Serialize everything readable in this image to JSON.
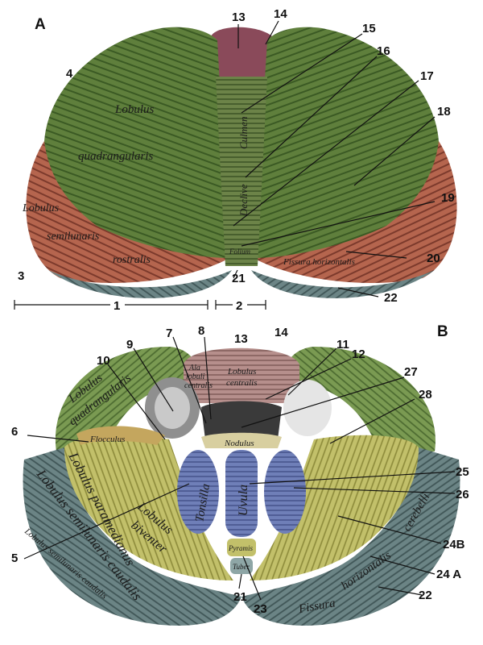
{
  "panels": {
    "a": "A",
    "b": "B"
  },
  "top_numbers": {
    "n13": "13",
    "n14": "14",
    "n15": "15",
    "n16": "16",
    "n17": "17",
    "n18": "18",
    "n19": "19",
    "n20": "20",
    "n21": "21",
    "n22": "22",
    "n1": "1",
    "n2": "2",
    "n3": "3",
    "n4": "4"
  },
  "top_labels": {
    "lobulus": "Lobulus",
    "quadrangularis": "quadrangularis",
    "lobulus_l": "Lobulus",
    "semilunaris": "semilunaris",
    "rostralis": "rostralis",
    "culmen": "Culmen",
    "declive": "Declive",
    "folium": "Folium",
    "fissura_horiz": "Fissura horizontalis"
  },
  "bottom_numbers": {
    "n5": "5",
    "n6": "6",
    "n7": "7",
    "n8": "8",
    "n9": "9",
    "n10": "10",
    "n11": "11",
    "n12": "12",
    "n13": "13",
    "n14": "14",
    "n21": "21",
    "n22": "22",
    "n23": "23",
    "n24a": "24 A",
    "n24b": "24B",
    "n25": "25",
    "n26": "26",
    "n27": "27",
    "n28": "28"
  },
  "bottom_labels": {
    "ala": "Ala",
    "lobuli": "lobuli",
    "centralis_ala": "centralis",
    "lobulus_c": "Lobulus",
    "centralis": "centralis",
    "lobulus_q": "Lobulus",
    "quadrangularis": "quadrangularis",
    "flocculus": "Flocculus",
    "nodulus": "Nodulus",
    "tonsilla": "Tonsilla",
    "uvula": "Uvula",
    "lobulus_b": "Lobulus",
    "biventer": "biventer",
    "lobulus_p": "Lobulus paramedianus",
    "semilunaris_caudalis": "Lobulus semilunaris caudalis",
    "lobulus_sc": "Lobulus semilunaris caudalis",
    "pyramis": "Pyramis",
    "tuber": "Tuber",
    "fissura": "Fissura",
    "horizontalis": "horizontalis",
    "cerebelli": "cerebelli"
  }
}
